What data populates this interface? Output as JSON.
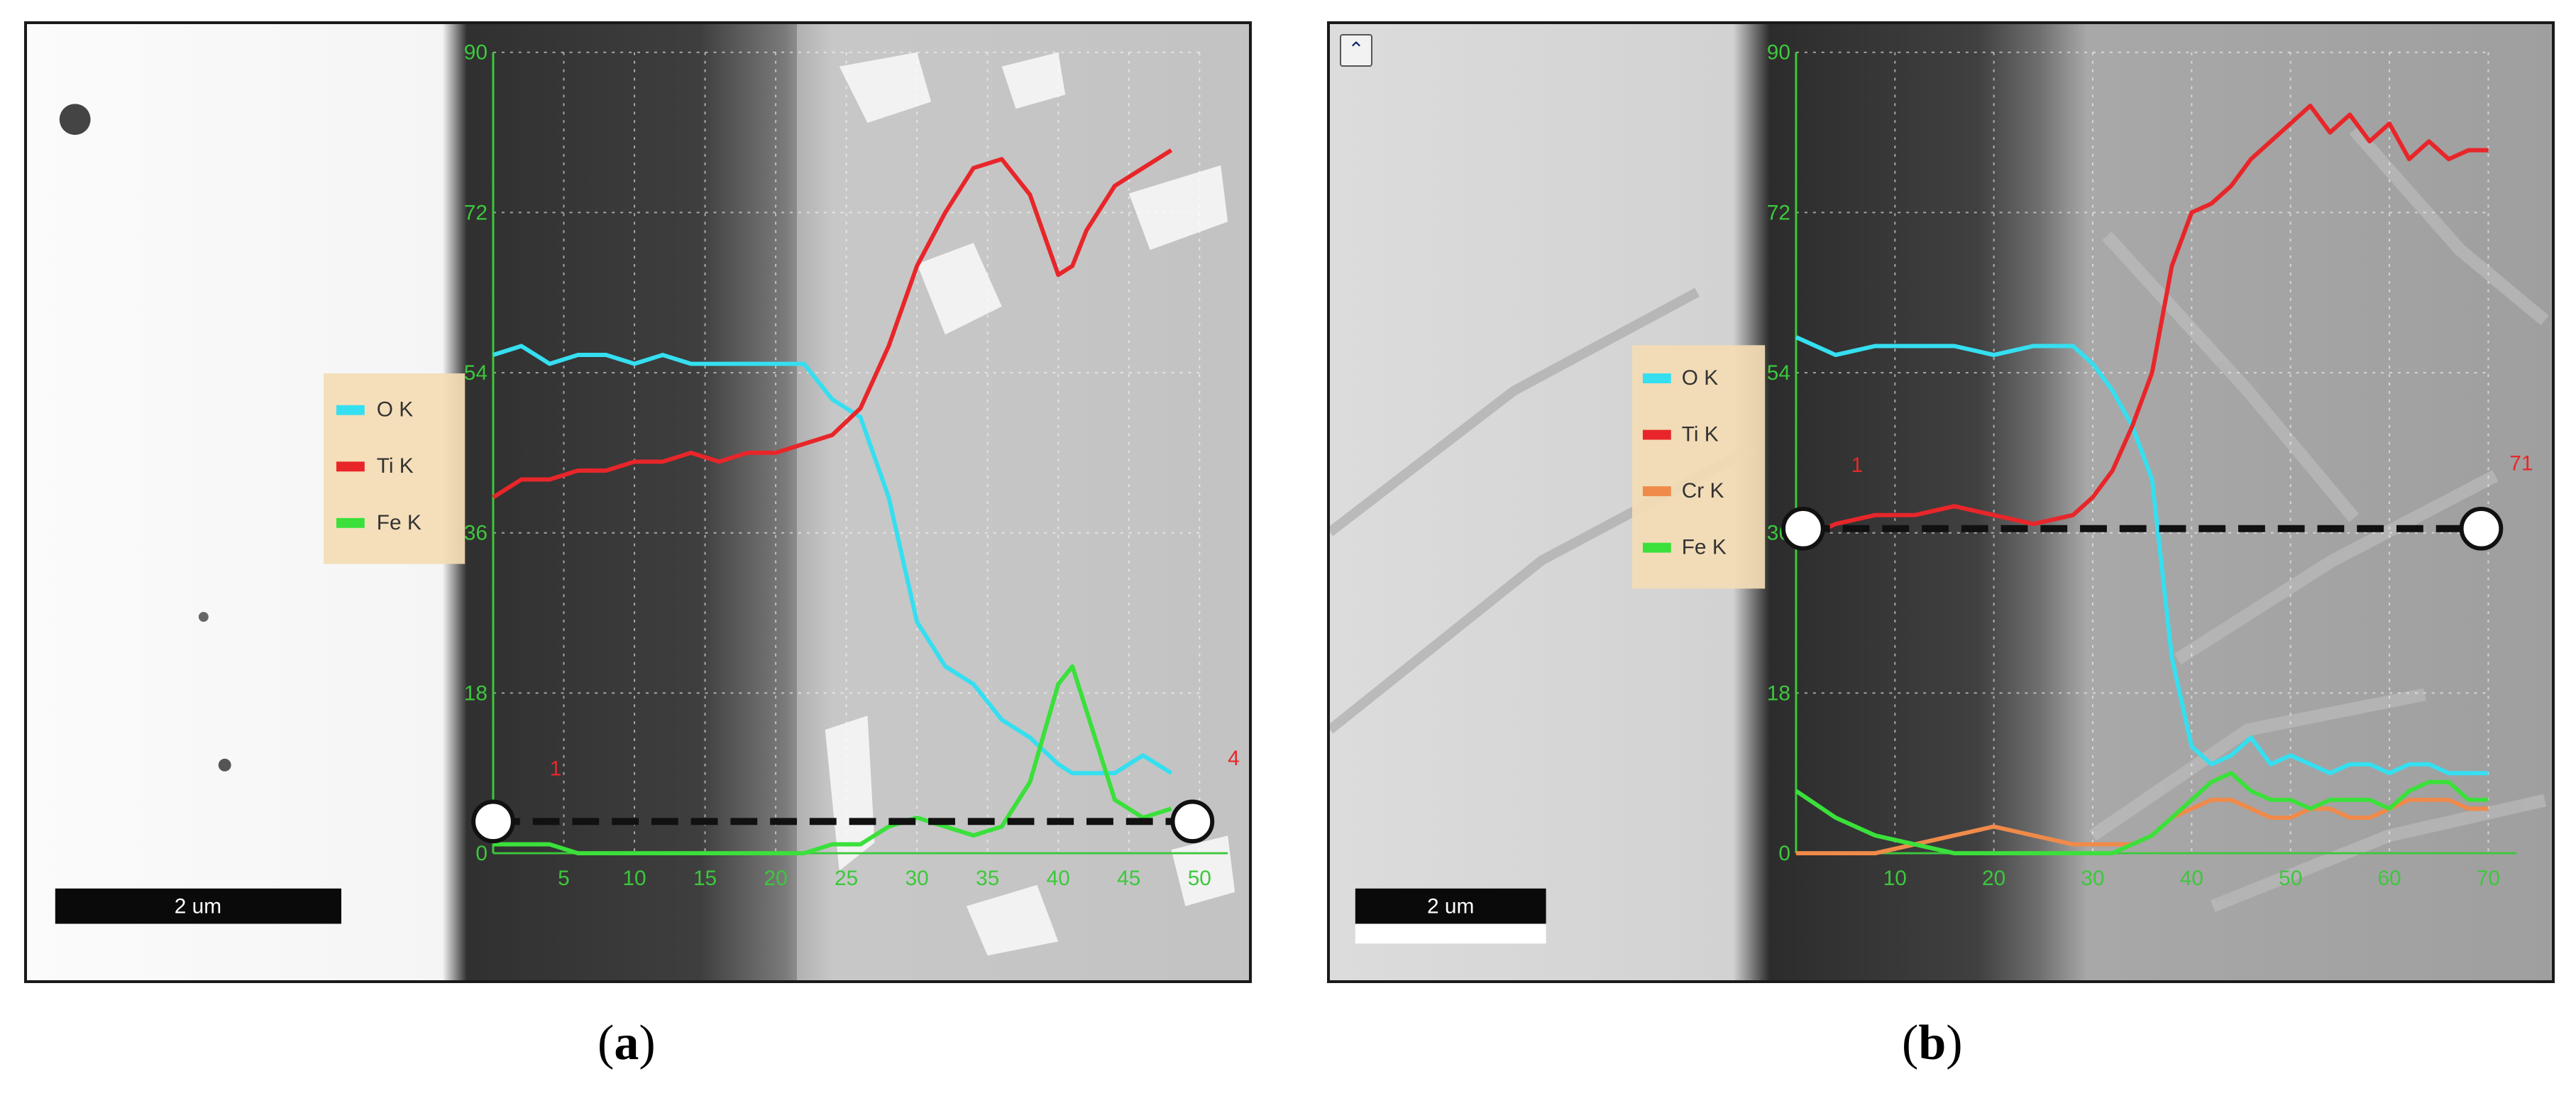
{
  "caption_a": "a",
  "caption_b": "b",
  "colors": {
    "O K": "#35dff0",
    "Ti K": "#e8262a",
    "Cr K": "#f08a4a",
    "Fe K": "#3be03b",
    "axis": "#3cc83c",
    "tick_label": "#3cc83c",
    "marker_label": "#e8262a",
    "legend_bg": "#f3dcb4"
  },
  "panels": [
    {
      "id": "a",
      "scale_bar_label": "2 um",
      "start_marker_label": "1",
      "end_marker_label": "4",
      "legend": [
        "O  K",
        "Ti K",
        "Fe K"
      ]
    },
    {
      "id": "b",
      "scale_bar_label": "2 um",
      "start_marker_label": "1",
      "end_marker_label": "71",
      "legend": [
        "O  K",
        "Ti K",
        "Cr K",
        "Fe K"
      ],
      "corner_icon": "chevron-up-icon"
    }
  ],
  "chart_data": [
    {
      "type": "line",
      "title": "",
      "xlabel": "",
      "ylabel": "",
      "xlim": [
        0,
        50
      ],
      "ylim": [
        0,
        90
      ],
      "xticks": [
        5,
        10,
        15,
        20,
        25,
        30,
        35,
        40,
        45,
        50
      ],
      "yticks": [
        0,
        18,
        36,
        54,
        72,
        90
      ],
      "x": [
        0,
        2,
        4,
        6,
        8,
        10,
        12,
        14,
        16,
        18,
        20,
        22,
        24,
        26,
        28,
        30,
        32,
        34,
        36,
        38,
        40,
        41,
        42,
        44,
        46,
        48
      ],
      "series": [
        {
          "name": "O  K",
          "values": [
            56,
            57,
            55,
            56,
            56,
            55,
            56,
            55,
            55,
            55,
            55,
            55,
            51,
            49,
            40,
            26,
            21,
            19,
            15,
            13,
            10,
            9,
            9,
            9,
            11,
            9
          ]
        },
        {
          "name": "Ti K",
          "values": [
            40,
            42,
            42,
            43,
            43,
            44,
            44,
            45,
            44,
            45,
            45,
            46,
            47,
            50,
            57,
            66,
            72,
            77,
            78,
            74,
            65,
            66,
            70,
            75,
            77,
            79
          ]
        },
        {
          "name": "Fe K",
          "values": [
            1,
            1,
            1,
            0,
            0,
            0,
            0,
            0,
            0,
            0,
            0,
            0,
            1,
            1,
            3,
            4,
            3,
            2,
            3,
            8,
            19,
            21,
            16,
            6,
            4,
            5
          ]
        }
      ]
    },
    {
      "type": "line",
      "title": "",
      "xlabel": "",
      "ylabel": "",
      "xlim": [
        0,
        70
      ],
      "ylim": [
        0,
        90
      ],
      "xticks": [
        10,
        20,
        30,
        40,
        50,
        60,
        70
      ],
      "yticks": [
        0,
        18,
        36,
        54,
        72,
        90
      ],
      "x": [
        0,
        4,
        8,
        12,
        16,
        20,
        24,
        28,
        30,
        32,
        34,
        36,
        38,
        40,
        42,
        44,
        46,
        48,
        50,
        52,
        54,
        56,
        58,
        60,
        62,
        64,
        66,
        68,
        70
      ],
      "series": [
        {
          "name": "O  K",
          "values": [
            58,
            56,
            57,
            57,
            57,
            56,
            57,
            57,
            55,
            52,
            48,
            42,
            22,
            12,
            10,
            11,
            13,
            10,
            11,
            10,
            9,
            10,
            10,
            9,
            10,
            10,
            9,
            9,
            9
          ]
        },
        {
          "name": "Ti K",
          "values": [
            35,
            37,
            38,
            38,
            39,
            38,
            37,
            38,
            40,
            43,
            48,
            54,
            66,
            72,
            73,
            75,
            78,
            80,
            82,
            84,
            81,
            83,
            80,
            82,
            78,
            80,
            78,
            79,
            79
          ]
        },
        {
          "name": "Cr K",
          "values": [
            0,
            0,
            0,
            1,
            2,
            3,
            2,
            1,
            1,
            1,
            1,
            2,
            4,
            5,
            6,
            6,
            5,
            4,
            4,
            5,
            5,
            4,
            4,
            5,
            6,
            6,
            6,
            5,
            5
          ]
        },
        {
          "name": "Fe K",
          "values": [
            7,
            4,
            2,
            1,
            0,
            0,
            0,
            0,
            0,
            0,
            1,
            2,
            4,
            6,
            8,
            9,
            7,
            6,
            6,
            5,
            6,
            6,
            6,
            5,
            7,
            8,
            8,
            6,
            6
          ]
        }
      ]
    }
  ]
}
